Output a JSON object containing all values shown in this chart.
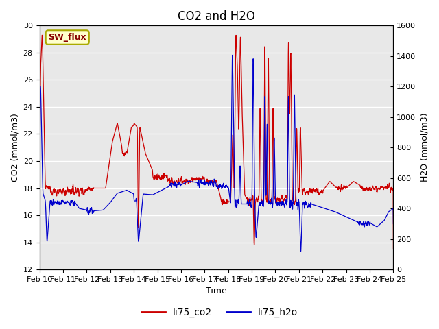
{
  "title": "CO2 and H2O",
  "xlabel": "Time",
  "ylabel_left": "CO2 (mmol/m3)",
  "ylabel_right": "H2O (mmol/m3)",
  "ylim_left": [
    12,
    30
  ],
  "ylim_right": [
    0,
    1600
  ],
  "yticks_left": [
    12,
    14,
    16,
    18,
    20,
    22,
    24,
    26,
    28,
    30
  ],
  "yticks_right": [
    0,
    200,
    400,
    600,
    800,
    1000,
    1200,
    1400,
    1600
  ],
  "xtick_labels": [
    "Feb 10",
    "Feb 11",
    "Feb 12",
    "Feb 13",
    "Feb 14",
    "Feb 15",
    "Feb 16",
    "Feb 17",
    "Feb 18",
    "Feb 19",
    "Feb 20",
    "Feb 21",
    "Feb 22",
    "Feb 23",
    "Feb 24",
    "Feb 25"
  ],
  "co2_color": "#cc0000",
  "h2o_color": "#0000cc",
  "background_color": "#e8e8e8",
  "grid_color": "#ffffff",
  "legend_box_facecolor": "#ffffcc",
  "legend_box_edgecolor": "#aaaa00",
  "sw_flux_label": "SW_flux",
  "sw_flux_text_color": "#880000",
  "legend_co2": "li75_co2",
  "legend_h2o": "li75_h2o",
  "title_fontsize": 12,
  "axis_label_fontsize": 9,
  "tick_fontsize": 8
}
